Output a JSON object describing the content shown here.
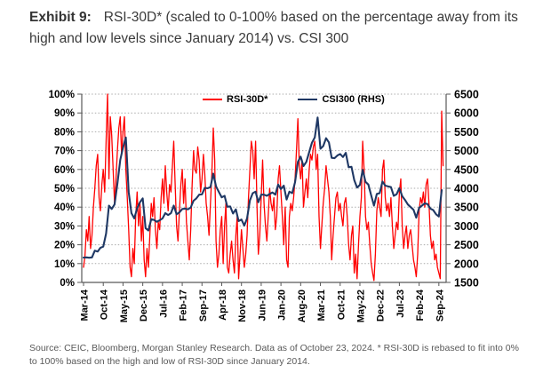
{
  "title": {
    "exhibit": "Exhibit 9:",
    "text": "RSI-30D* (scaled to 0-100% based on the percentage away from its high and low levels since January 2014) vs. CSI 300"
  },
  "source": "Source: CEIC, Bloomberg, Morgan Stanley Research. Data as of October 23, 2024. * RSI-30D is rebased to fit into 0% to 100% based on the high and low of RSI-30D since January 2014.",
  "legend": [
    {
      "label": "RSI-30D*",
      "color": "#ff0000"
    },
    {
      "label": "CSI300 (RHS)",
      "color": "#1f3864"
    }
  ],
  "colors": {
    "rsi_line": "#ff0000",
    "csi_line": "#1f3864",
    "gridline": "#ababab",
    "axis": "#595959",
    "tick_label": "#000000"
  },
  "chart_data": {
    "type": "line",
    "title": "RSI-30D* vs CSI300",
    "grid": "horizontal dotted",
    "legend_position": "top-center-inside",
    "x_range": "Mar-2014 to Oct-2024, monthly",
    "x_tick_labels": [
      "Mar-14",
      "Oct-14",
      "May-15",
      "Dec-15",
      "Jul-16",
      "Feb-17",
      "Sep-17",
      "Apr-18",
      "Nov-18",
      "Jun-19",
      "Jan-20",
      "Aug-20",
      "Mar-21",
      "Oct-21",
      "May-22",
      "Dec-22",
      "Jul-23",
      "Feb-24",
      "Sep-24"
    ],
    "x_tick_interval_months": 7,
    "left_axis": {
      "ticks": [
        "100%",
        "90%",
        "80%",
        "70%",
        "60%",
        "50%",
        "40%",
        "30%",
        "20%",
        "10%",
        "0%"
      ],
      "min": 0,
      "max": 100
    },
    "right_axis": {
      "ticks": [
        6500,
        6000,
        5500,
        5000,
        4500,
        4000,
        3500,
        3000,
        2500,
        2000,
        1500
      ],
      "min": 1500,
      "max": 6500
    },
    "series": [
      {
        "name": "RSI-30D*",
        "axis": "left",
        "color": "#ff0000",
        "points_per_month": 2,
        "values": [
          8,
          14,
          28,
          22,
          35,
          18,
          25,
          40,
          50,
          62,
          68,
          45,
          38,
          52,
          60,
          48,
          75,
          100,
          55,
          88,
          78,
          60,
          42,
          55,
          70,
          82,
          88,
          68,
          80,
          88,
          60,
          45,
          28,
          8,
          3,
          18,
          10,
          35,
          48,
          30,
          42,
          22,
          35,
          12,
          3,
          18,
          8,
          25,
          42,
          35,
          45,
          28,
          18,
          32,
          28,
          45,
          55,
          42,
          62,
          48,
          38,
          52,
          48,
          62,
          75,
          52,
          30,
          22,
          38,
          52,
          60,
          42,
          55,
          32,
          22,
          12,
          28,
          52,
          70,
          60,
          58,
          72,
          65,
          48,
          55,
          68,
          58,
          42,
          35,
          25,
          42,
          58,
          82,
          65,
          22,
          8,
          15,
          28,
          35,
          10,
          30,
          42,
          8,
          5,
          15,
          22,
          12,
          5,
          25,
          35,
          2,
          15,
          28,
          18,
          8,
          15,
          25,
          45,
          60,
          75,
          70,
          55,
          75,
          40,
          15,
          25,
          45,
          65,
          42,
          30,
          22,
          35,
          50,
          42,
          38,
          45,
          28,
          35,
          55,
          62,
          48,
          35,
          20,
          40,
          12,
          8,
          35,
          42,
          38,
          45,
          55,
          70,
          87,
          62,
          55,
          65,
          40,
          48,
          55,
          45,
          60,
          68,
          65,
          72,
          75,
          60,
          68,
          35,
          18,
          30,
          42,
          50,
          62,
          55,
          48,
          35,
          12,
          25,
          35,
          45,
          48,
          38,
          42,
          35,
          30,
          42,
          45,
          35,
          20,
          12,
          25,
          30,
          5,
          15,
          2,
          20,
          35,
          45,
          75,
          60,
          35,
          28,
          32,
          20,
          10,
          5,
          1,
          15,
          38,
          45,
          40,
          35,
          60,
          65,
          45,
          38,
          42,
          35,
          45,
          30,
          18,
          25,
          32,
          28,
          48,
          55,
          30,
          18,
          25,
          30,
          18,
          25,
          28,
          20,
          12,
          8,
          3,
          15,
          38,
          45,
          42,
          48,
          40,
          52,
          55,
          42,
          25,
          18,
          22,
          12,
          15,
          8,
          5,
          2,
          91,
          62
        ]
      },
      {
        "name": "CSI300 (RHS)",
        "axis": "right",
        "color": "#1f3864",
        "points_per_month": 1,
        "values": [
          2160,
          2165,
          2155,
          2165,
          2345,
          2320,
          2420,
          2450,
          2800,
          3540,
          3450,
          3570,
          4120,
          4750,
          5080,
          5350,
          3900,
          3340,
          3200,
          3470,
          3630,
          3730,
          2940,
          2880,
          3180,
          3160,
          3110,
          3150,
          3200,
          3340,
          3290,
          3340,
          3540,
          3310,
          3360,
          3450,
          3460,
          3440,
          3490,
          3670,
          3730,
          3830,
          3840,
          4010,
          4000,
          4030,
          4390,
          4050,
          3900,
          3760,
          3800,
          3510,
          3520,
          3330,
          3440,
          3130,
          3170,
          3010,
          3200,
          3680,
          3870,
          3910,
          3630,
          3830,
          3830,
          3800,
          3850,
          3890,
          3830,
          4100,
          3980,
          4070,
          3700,
          3910,
          3870,
          4160,
          4700,
          4840,
          4590,
          4700,
          4960,
          5210,
          5350,
          5880,
          5050,
          5120,
          5330,
          5220,
          4810,
          4800,
          4870,
          4910,
          4830,
          4940,
          4560,
          4570,
          4220,
          4020,
          4090,
          4490,
          4170,
          4100,
          3810,
          3540,
          3850,
          3870,
          4180,
          4070,
          4050,
          4030,
          3800,
          3840,
          4000,
          3790,
          3690,
          3570,
          3500,
          3430,
          3220,
          3480,
          3540,
          3600,
          3580,
          3460,
          3420,
          3310,
          3250,
          3950
        ]
      }
    ]
  }
}
